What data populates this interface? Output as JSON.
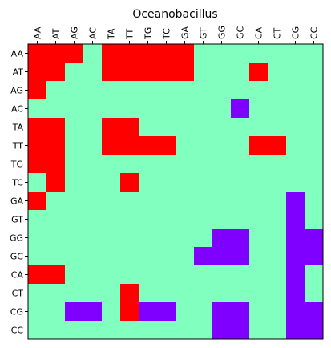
{
  "chart_data": {
    "type": "heatmap",
    "title": "Oceanobacillus",
    "xlabel": "",
    "ylabel": "",
    "x_categories": [
      "AA",
      "AT",
      "AG",
      "AC",
      "TA",
      "TT",
      "TG",
      "TC",
      "GA",
      "GT",
      "GG",
      "GC",
      "CA",
      "CT",
      "CG",
      "CC"
    ],
    "y_categories": [
      "AA",
      "AT",
      "AG",
      "AC",
      "TA",
      "TT",
      "TG",
      "TC",
      "GA",
      "GT",
      "GG",
      "GC",
      "CA",
      "CT",
      "CG",
      "CC"
    ],
    "values": [
      [
        1,
        1,
        1,
        0,
        1,
        1,
        1,
        1,
        1,
        0,
        0,
        0,
        0,
        0,
        0,
        0
      ],
      [
        1,
        1,
        0,
        0,
        1,
        1,
        1,
        1,
        1,
        0,
        0,
        0,
        1,
        0,
        0,
        0
      ],
      [
        1,
        0,
        0,
        0,
        0,
        0,
        0,
        0,
        0,
        0,
        0,
        0,
        0,
        0,
        0,
        0
      ],
      [
        0,
        0,
        0,
        0,
        0,
        0,
        0,
        0,
        0,
        0,
        0,
        -1,
        0,
        0,
        0,
        0
      ],
      [
        1,
        1,
        0,
        0,
        1,
        1,
        0,
        0,
        0,
        0,
        0,
        0,
        0,
        0,
        0,
        0
      ],
      [
        1,
        1,
        0,
        0,
        1,
        1,
        1,
        1,
        0,
        0,
        0,
        0,
        1,
        1,
        0,
        0
      ],
      [
        1,
        1,
        0,
        0,
        0,
        0,
        0,
        0,
        0,
        0,
        0,
        0,
        0,
        0,
        0,
        0
      ],
      [
        0,
        1,
        0,
        0,
        0,
        1,
        0,
        0,
        0,
        0,
        0,
        0,
        0,
        0,
        0,
        0
      ],
      [
        1,
        0,
        0,
        0,
        0,
        0,
        0,
        0,
        0,
        0,
        0,
        0,
        0,
        0,
        -1,
        0
      ],
      [
        0,
        0,
        0,
        0,
        0,
        0,
        0,
        0,
        0,
        0,
        0,
        0,
        0,
        0,
        -1,
        0
      ],
      [
        0,
        0,
        0,
        0,
        0,
        0,
        0,
        0,
        0,
        0,
        -1,
        -1,
        0,
        0,
        -1,
        -1
      ],
      [
        0,
        0,
        0,
        0,
        0,
        0,
        0,
        0,
        0,
        -1,
        -1,
        -1,
        0,
        0,
        -1,
        -1
      ],
      [
        1,
        1,
        0,
        0,
        0,
        0,
        0,
        0,
        0,
        0,
        0,
        0,
        0,
        0,
        -1,
        0
      ],
      [
        0,
        0,
        0,
        0,
        0,
        1,
        0,
        0,
        0,
        0,
        0,
        0,
        0,
        0,
        -1,
        0
      ],
      [
        0,
        0,
        -1,
        -1,
        0,
        1,
        -1,
        -1,
        0,
        0,
        -1,
        -1,
        0,
        0,
        -1,
        -1
      ],
      [
        0,
        0,
        0,
        0,
        0,
        0,
        0,
        0,
        0,
        0,
        -1,
        -1,
        0,
        0,
        -1,
        -1
      ]
    ],
    "colors": {
      "1": "#ff0000",
      "0": "#80ffbf",
      "-1": "#8000ff"
    },
    "grid": false,
    "x_ticks_position": "top"
  }
}
